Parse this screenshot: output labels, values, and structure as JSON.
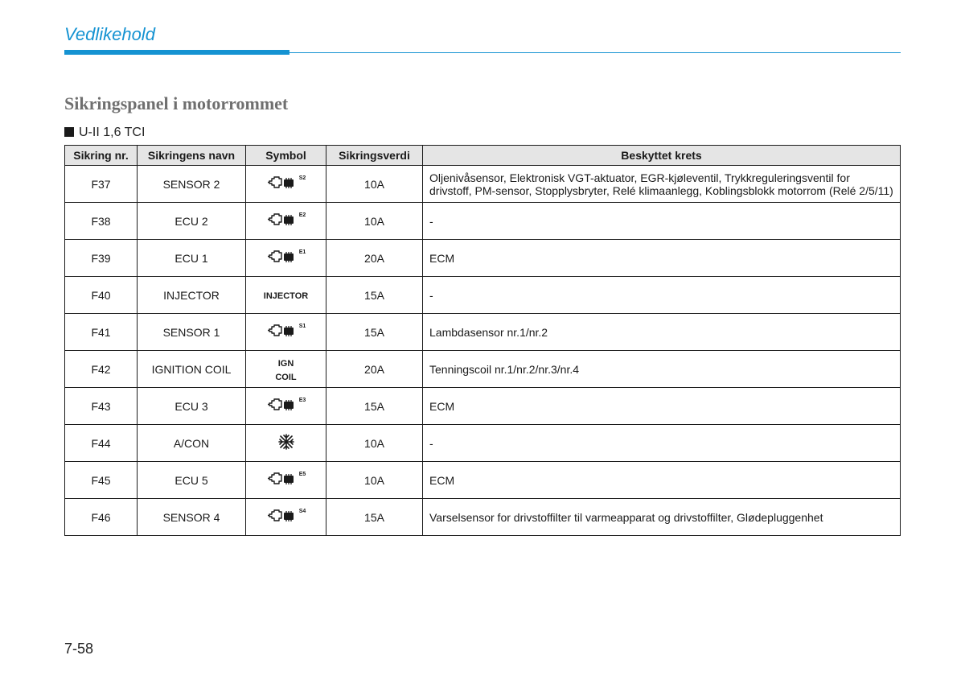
{
  "header": {
    "title": "Vedlikehold",
    "title_color": "#1593d2",
    "rule_color": "#1593d2"
  },
  "section": {
    "title": "Sikringspanel i motorrommet",
    "subheading": "U-II 1,6 TCI"
  },
  "table": {
    "columns": [
      "Sikring nr.",
      "Sikringens navn",
      "Symbol",
      "Sikringsverdi",
      "Beskyttet krets"
    ],
    "header_bg": "#e5e5e5",
    "border_color": "#1a1a1a",
    "rows": [
      {
        "nr": "F37",
        "name": "SENSOR 2",
        "symbol": {
          "type": "ecu",
          "label": "S2"
        },
        "value": "10A",
        "desc": "Oljenivåsensor, Elektronisk VGT-aktuator, EGR-kjøleventil, Trykkreguleringsventil for drivstoff, PM-sensor, Stopplysbryter, Relé klimaanlegg, Koblingsblokk motorrom (Relé 2/5/11)"
      },
      {
        "nr": "F38",
        "name": "ECU 2",
        "symbol": {
          "type": "ecu",
          "label": "E2"
        },
        "value": "10A",
        "desc": "-"
      },
      {
        "nr": "F39",
        "name": "ECU 1",
        "symbol": {
          "type": "ecu",
          "label": "E1"
        },
        "value": "20A",
        "desc": "ECM"
      },
      {
        "nr": "F40",
        "name": "INJECTOR",
        "symbol": {
          "type": "text",
          "text": "INJECTOR"
        },
        "value": "15A",
        "desc": "-"
      },
      {
        "nr": "F41",
        "name": "SENSOR 1",
        "symbol": {
          "type": "ecu",
          "label": "S1"
        },
        "value": "15A",
        "desc": "Lambdasensor nr.1/nr.2"
      },
      {
        "nr": "F42",
        "name": "IGNITION COIL",
        "symbol": {
          "type": "text2",
          "line1": "IGN",
          "line2": "COIL"
        },
        "value": "20A",
        "desc": "Tenningscoil nr.1/nr.2/nr.3/nr.4"
      },
      {
        "nr": "F43",
        "name": "ECU 3",
        "symbol": {
          "type": "ecu",
          "label": "E3"
        },
        "value": "15A",
        "desc": "ECM"
      },
      {
        "nr": "F44",
        "name": "A/CON",
        "symbol": {
          "type": "snow"
        },
        "value": "10A",
        "desc": "-"
      },
      {
        "nr": "F45",
        "name": "ECU 5",
        "symbol": {
          "type": "ecu",
          "label": "E5"
        },
        "value": "10A",
        "desc": "ECM"
      },
      {
        "nr": "F46",
        "name": "SENSOR 4",
        "symbol": {
          "type": "ecu",
          "label": "S4"
        },
        "value": "15A",
        "desc": "Varselsensor for drivstoffilter til varmeapparat og drivstoffilter, Glødepluggenhet"
      }
    ]
  },
  "page_number": "7-58",
  "colors": {
    "text": "#1a1a1a",
    "accent": "#1593d2",
    "section_title": "#6f6f6f",
    "background": "#ffffff"
  }
}
